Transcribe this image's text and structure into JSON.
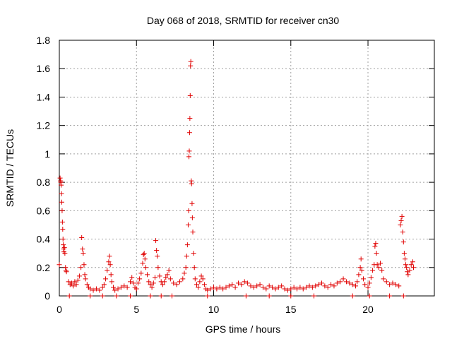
{
  "chart_data": {
    "type": "scatter",
    "title": "Day 068 of 2018, SRMTID for receiver cn30",
    "xlabel": "GPS time / hours",
    "ylabel": "SRMTID / TECUs",
    "xlim": [
      0,
      24.3
    ],
    "ylim": [
      0,
      1.8
    ],
    "xticks": [
      0,
      5,
      10,
      15,
      20
    ],
    "yticks": [
      0,
      0.2,
      0.4,
      0.6,
      0.8,
      1,
      1.2,
      1.4,
      1.6,
      1.8
    ],
    "xtick_labels": [
      "0",
      "5",
      "10",
      "15",
      "20"
    ],
    "ytick_labels": [
      "0",
      "0.2",
      "0.4",
      "0.6",
      "0.8",
      "1",
      "1.2",
      "1.4",
      "1.6",
      "1.8"
    ],
    "grid": true,
    "marker": "+",
    "color": "#e00000",
    "series": [
      {
        "name": "SRMTID",
        "points": [
          [
            0.0,
            0.22
          ],
          [
            0.05,
            0.83
          ],
          [
            0.08,
            0.81
          ],
          [
            0.1,
            0.8
          ],
          [
            0.12,
            0.78
          ],
          [
            0.14,
            0.72
          ],
          [
            0.16,
            0.66
          ],
          [
            0.18,
            0.6
          ],
          [
            0.2,
            0.52
          ],
          [
            0.22,
            0.47
          ],
          [
            0.24,
            0.4
          ],
          [
            0.26,
            0.36
          ],
          [
            0.28,
            0.33
          ],
          [
            0.3,
            0.31
          ],
          [
            0.33,
            0.34
          ],
          [
            0.36,
            0.3
          ],
          [
            0.4,
            0.2
          ],
          [
            0.43,
            0.18
          ],
          [
            0.46,
            0.17
          ],
          [
            0.6,
            0.1
          ],
          [
            0.7,
            0.08
          ],
          [
            0.8,
            0.09
          ],
          [
            0.9,
            0.07
          ],
          [
            1.0,
            0.1
          ],
          [
            1.1,
            0.08
          ],
          [
            1.2,
            0.11
          ],
          [
            1.3,
            0.14
          ],
          [
            1.4,
            0.2
          ],
          [
            1.45,
            0.41
          ],
          [
            1.5,
            0.33
          ],
          [
            1.55,
            0.3
          ],
          [
            1.6,
            0.22
          ],
          [
            1.65,
            0.15
          ],
          [
            1.7,
            0.12
          ],
          [
            1.8,
            0.08
          ],
          [
            1.9,
            0.06
          ],
          [
            2.0,
            0.05
          ],
          [
            2.2,
            0.04
          ],
          [
            2.4,
            0.05
          ],
          [
            2.6,
            0.04
          ],
          [
            2.8,
            0.06
          ],
          [
            2.9,
            0.08
          ],
          [
            3.0,
            0.12
          ],
          [
            3.1,
            0.18
          ],
          [
            3.2,
            0.24
          ],
          [
            3.25,
            0.28
          ],
          [
            3.3,
            0.22
          ],
          [
            3.35,
            0.15
          ],
          [
            3.4,
            0.1
          ],
          [
            3.5,
            0.06
          ],
          [
            3.6,
            0.04
          ],
          [
            3.8,
            0.05
          ],
          [
            4.0,
            0.06
          ],
          [
            4.2,
            0.07
          ],
          [
            4.4,
            0.06
          ],
          [
            4.6,
            0.1
          ],
          [
            4.7,
            0.13
          ],
          [
            4.8,
            0.09
          ],
          [
            4.9,
            0.06
          ],
          [
            5.0,
            0.05
          ],
          [
            5.1,
            0.09
          ],
          [
            5.2,
            0.12
          ],
          [
            5.3,
            0.16
          ],
          [
            5.4,
            0.23
          ],
          [
            5.45,
            0.29
          ],
          [
            5.5,
            0.3
          ],
          [
            5.55,
            0.26
          ],
          [
            5.6,
            0.2
          ],
          [
            5.7,
            0.15
          ],
          [
            5.8,
            0.1
          ],
          [
            5.9,
            0.08
          ],
          [
            6.0,
            0.06
          ],
          [
            6.1,
            0.09
          ],
          [
            6.2,
            0.13
          ],
          [
            6.25,
            0.39
          ],
          [
            6.3,
            0.32
          ],
          [
            6.35,
            0.28
          ],
          [
            6.4,
            0.2
          ],
          [
            6.5,
            0.14
          ],
          [
            6.6,
            0.1
          ],
          [
            6.7,
            0.08
          ],
          [
            6.8,
            0.1
          ],
          [
            6.9,
            0.13
          ],
          [
            7.0,
            0.15
          ],
          [
            7.1,
            0.18
          ],
          [
            7.2,
            0.12
          ],
          [
            7.4,
            0.09
          ],
          [
            7.6,
            0.08
          ],
          [
            7.8,
            0.1
          ],
          [
            8.0,
            0.12
          ],
          [
            8.1,
            0.16
          ],
          [
            8.2,
            0.2
          ],
          [
            8.25,
            0.28
          ],
          [
            8.3,
            0.36
          ],
          [
            8.35,
            0.5
          ],
          [
            8.38,
            0.6
          ],
          [
            8.4,
            0.98
          ],
          [
            8.42,
            1.02
          ],
          [
            8.44,
            1.15
          ],
          [
            8.46,
            1.25
          ],
          [
            8.48,
            1.41
          ],
          [
            8.5,
            1.62
          ],
          [
            8.52,
            1.65
          ],
          [
            8.55,
            0.81
          ],
          [
            8.57,
            0.79
          ],
          [
            8.6,
            0.65
          ],
          [
            8.62,
            0.55
          ],
          [
            8.65,
            0.45
          ],
          [
            8.7,
            0.3
          ],
          [
            8.75,
            0.2
          ],
          [
            8.8,
            0.12
          ],
          [
            8.9,
            0.08
          ],
          [
            9.0,
            0.06
          ],
          [
            9.1,
            0.1
          ],
          [
            9.2,
            0.14
          ],
          [
            9.3,
            0.12
          ],
          [
            9.4,
            0.08
          ],
          [
            9.5,
            0.05
          ],
          [
            9.6,
            0.04
          ],
          [
            9.8,
            0.05
          ],
          [
            10.0,
            0.06
          ],
          [
            10.2,
            0.05
          ],
          [
            10.4,
            0.06
          ],
          [
            10.6,
            0.05
          ],
          [
            10.8,
            0.06
          ],
          [
            11.0,
            0.07
          ],
          [
            11.2,
            0.08
          ],
          [
            11.4,
            0.06
          ],
          [
            11.6,
            0.09
          ],
          [
            11.8,
            0.08
          ],
          [
            12.0,
            0.1
          ],
          [
            12.2,
            0.09
          ],
          [
            12.4,
            0.07
          ],
          [
            12.6,
            0.06
          ],
          [
            12.8,
            0.07
          ],
          [
            13.0,
            0.08
          ],
          [
            13.2,
            0.06
          ],
          [
            13.4,
            0.05
          ],
          [
            13.6,
            0.07
          ],
          [
            13.8,
            0.06
          ],
          [
            14.0,
            0.05
          ],
          [
            14.2,
            0.06
          ],
          [
            14.4,
            0.07
          ],
          [
            14.6,
            0.05
          ],
          [
            14.8,
            0.04
          ],
          [
            15.0,
            0.05
          ],
          [
            15.2,
            0.06
          ],
          [
            15.4,
            0.05
          ],
          [
            15.6,
            0.06
          ],
          [
            15.8,
            0.05
          ],
          [
            16.0,
            0.06
          ],
          [
            16.2,
            0.07
          ],
          [
            16.4,
            0.06
          ],
          [
            16.6,
            0.07
          ],
          [
            16.8,
            0.08
          ],
          [
            17.0,
            0.09
          ],
          [
            17.2,
            0.07
          ],
          [
            17.4,
            0.06
          ],
          [
            17.6,
            0.08
          ],
          [
            17.8,
            0.07
          ],
          [
            18.0,
            0.09
          ],
          [
            18.2,
            0.1
          ],
          [
            18.4,
            0.12
          ],
          [
            18.6,
            0.1
          ],
          [
            18.8,
            0.09
          ],
          [
            19.0,
            0.08
          ],
          [
            19.2,
            0.07
          ],
          [
            19.3,
            0.1
          ],
          [
            19.4,
            0.15
          ],
          [
            19.5,
            0.2
          ],
          [
            19.55,
            0.26
          ],
          [
            19.6,
            0.18
          ],
          [
            19.7,
            0.12
          ],
          [
            19.8,
            0.08
          ],
          [
            20.0,
            0.06
          ],
          [
            20.1,
            0.09
          ],
          [
            20.2,
            0.13
          ],
          [
            20.3,
            0.18
          ],
          [
            20.4,
            0.22
          ],
          [
            20.45,
            0.35
          ],
          [
            20.5,
            0.37
          ],
          [
            20.55,
            0.3
          ],
          [
            20.6,
            0.22
          ],
          [
            20.7,
            0.2
          ],
          [
            20.8,
            0.23
          ],
          [
            20.9,
            0.18
          ],
          [
            21.0,
            0.12
          ],
          [
            21.2,
            0.1
          ],
          [
            21.4,
            0.08
          ],
          [
            21.6,
            0.09
          ],
          [
            21.8,
            0.08
          ],
          [
            22.0,
            0.07
          ],
          [
            22.1,
            0.5
          ],
          [
            22.15,
            0.53
          ],
          [
            22.2,
            0.56
          ],
          [
            22.25,
            0.45
          ],
          [
            22.3,
            0.38
          ],
          [
            22.35,
            0.3
          ],
          [
            22.4,
            0.26
          ],
          [
            22.45,
            0.22
          ],
          [
            22.5,
            0.2
          ],
          [
            22.55,
            0.17
          ],
          [
            22.6,
            0.15
          ],
          [
            22.7,
            0.18
          ],
          [
            22.8,
            0.22
          ],
          [
            22.9,
            0.24
          ],
          [
            22.95,
            0.2
          ],
          [
            0.65,
            0.0
          ],
          [
            2.0,
            0.0
          ],
          [
            2.8,
            0.0
          ],
          [
            3.7,
            0.0
          ],
          [
            4.6,
            0.0
          ],
          [
            5.9,
            0.0
          ],
          [
            6.6,
            0.0
          ],
          [
            7.3,
            0.0
          ],
          [
            9.6,
            0.0
          ],
          [
            12.1,
            0.0
          ],
          [
            13.6,
            0.0
          ],
          [
            15.0,
            0.0
          ],
          [
            16.5,
            0.0
          ],
          [
            19.0,
            0.0
          ],
          [
            20.1,
            0.0
          ],
          [
            21.4,
            0.0
          ],
          [
            22.3,
            0.0
          ]
        ]
      }
    ]
  }
}
